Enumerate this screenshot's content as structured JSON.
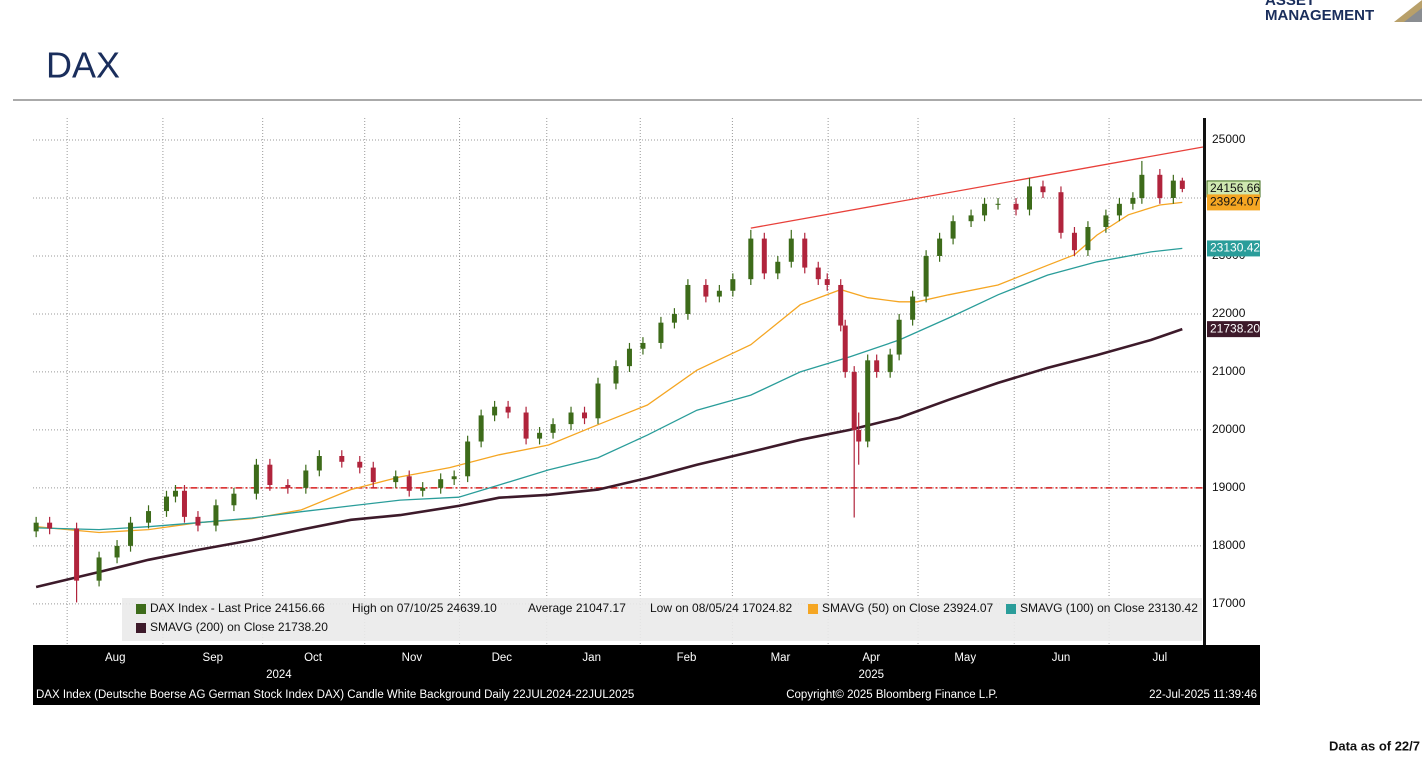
{
  "header": {
    "logo": [
      "ASSET",
      "MANAGEMENT"
    ],
    "title": "DAX"
  },
  "footer": {
    "note": "Data as of 22/7"
  },
  "chart_data": {
    "type": "candlestick",
    "xlim": [
      -0.7,
      259.6
    ],
    "ylim": [
      16290,
      25380
    ],
    "yticks": [
      17000,
      18000,
      19000,
      20000,
      21000,
      22000,
      23000,
      24000,
      25000
    ],
    "xticks": [
      {
        "value": 17.6,
        "label": "Aug"
      },
      {
        "value": 39.3,
        "label": "Sep"
      },
      {
        "value": 61.6,
        "label": "Oct"
      },
      {
        "value": 83.6,
        "label": "Nov"
      },
      {
        "value": 103.6,
        "label": "Dec"
      },
      {
        "value": 123.6,
        "label": "Jan"
      },
      {
        "value": 144.7,
        "label": "Feb"
      },
      {
        "value": 165.6,
        "label": "Mar"
      },
      {
        "value": 185.8,
        "label": "Apr"
      },
      {
        "value": 206.7,
        "label": "May"
      },
      {
        "value": 228,
        "label": "Jun"
      },
      {
        "value": 250,
        "label": "Jul"
      }
    ],
    "xgrid": [
      6.9,
      28.2,
      50.4,
      73.1,
      94.2,
      113.6,
      134.4,
      154.9,
      176.2,
      196.2,
      217.6,
      238.7
    ],
    "year_labels": [
      {
        "value": 54,
        "label": "2024"
      },
      {
        "value": 185.8,
        "label": "2025"
      }
    ],
    "grid": true,
    "series": [
      {
        "name": "DAX Index - Last Price 24156.66",
        "type": "candlestick",
        "color": "#3d6b1a",
        "down_color": "#b0243c",
        "label_fill": "#cfe8b0",
        "x": [
          0,
          3,
          9,
          14,
          18,
          21,
          25,
          29,
          31,
          33,
          36,
          40,
          44,
          49,
          52,
          56,
          60,
          63,
          68,
          72,
          75,
          80,
          83,
          86,
          90,
          93,
          96,
          99,
          102,
          105,
          109,
          112,
          115,
          119,
          122,
          125,
          129,
          132,
          135,
          139,
          142,
          145,
          149,
          152,
          155,
          159,
          162,
          165,
          168,
          171,
          174,
          176,
          179,
          180,
          182,
          183,
          185,
          187,
          190,
          192,
          195,
          198,
          201,
          204,
          208,
          211,
          214,
          218,
          221,
          224,
          228,
          231,
          234,
          238,
          241,
          244,
          246,
          250,
          253,
          255
        ],
        "open": [
          18250,
          18400,
          18300,
          17400,
          17800,
          18000,
          18400,
          18600,
          18850,
          18950,
          18500,
          18350,
          18700,
          18900,
          19400,
          19050,
          19000,
          19300,
          19550,
          19450,
          19350,
          19100,
          19200,
          18950,
          19000,
          19150,
          19200,
          19800,
          20250,
          20400,
          20300,
          19850,
          19950,
          20100,
          20300,
          20200,
          20800,
          21100,
          21400,
          21500,
          21850,
          22000,
          22500,
          22300,
          22400,
          22600,
          23300,
          22700,
          22900,
          23300,
          22800,
          22600,
          22500,
          21800,
          21000,
          20000,
          19800,
          21200,
          21000,
          21300,
          21900,
          22300,
          23000,
          23300,
          23600,
          23700,
          23900,
          23900,
          23800,
          24200,
          24100,
          23400,
          23100,
          23500,
          23700,
          23900,
          24000,
          24400,
          24000,
          24300
        ],
        "high": [
          18500,
          18500,
          18400,
          17900,
          18100,
          18500,
          18700,
          18950,
          19050,
          19050,
          18600,
          18800,
          19000,
          19500,
          19500,
          19150,
          19400,
          19650,
          19650,
          19550,
          19450,
          19300,
          19300,
          19100,
          19250,
          19300,
          19900,
          20350,
          20500,
          20500,
          20400,
          20050,
          20200,
          20400,
          20400,
          20900,
          21200,
          21500,
          21600,
          21950,
          22100,
          22600,
          22600,
          22500,
          22700,
          23450,
          23400,
          23000,
          23450,
          23400,
          22900,
          22700,
          22600,
          21900,
          21100,
          20300,
          21300,
          21300,
          21400,
          22000,
          22400,
          23100,
          23400,
          23700,
          23800,
          24000,
          24000,
          24000,
          24350,
          24300,
          24200,
          23500,
          23600,
          23800,
          24000,
          24100,
          24639.1,
          24500,
          24400,
          24350
        ],
        "low": [
          18150,
          18200,
          17024.82,
          17300,
          17700,
          17900,
          18300,
          18500,
          18750,
          18400,
          18250,
          18250,
          18600,
          18800,
          18950,
          18900,
          18900,
          19200,
          19350,
          19250,
          19000,
          19000,
          18850,
          18850,
          18900,
          19050,
          19100,
          19700,
          20150,
          20200,
          19750,
          19750,
          19850,
          20000,
          20100,
          20100,
          20700,
          21000,
          21300,
          21400,
          21750,
          21900,
          22200,
          22200,
          22300,
          22500,
          22600,
          22600,
          22800,
          22700,
          22500,
          22400,
          21700,
          20900,
          18490,
          19400,
          19700,
          20900,
          20900,
          21200,
          21800,
          22200,
          22900,
          23200,
          23500,
          23600,
          23800,
          23700,
          23700,
          24000,
          23300,
          23000,
          23000,
          23400,
          23600,
          23800,
          23900,
          23900,
          23900,
          24100
        ],
        "close": [
          18400,
          18300,
          17400,
          17800,
          18000,
          18400,
          18600,
          18850,
          18950,
          18500,
          18350,
          18700,
          18900,
          19400,
          19050,
          19000,
          19300,
          19550,
          19450,
          19350,
          19100,
          19200,
          18950,
          19000,
          19150,
          19200,
          19800,
          20250,
          20400,
          20300,
          19850,
          19950,
          20100,
          20300,
          20200,
          20800,
          21100,
          21400,
          21500,
          21850,
          22000,
          22500,
          22300,
          22400,
          22600,
          23300,
          22700,
          22900,
          23300,
          22800,
          22600,
          22500,
          21800,
          21000,
          20000,
          19800,
          21200,
          21000,
          21300,
          21900,
          22300,
          23000,
          23300,
          23600,
          23700,
          23900,
          23900,
          23800,
          24200,
          24100,
          23400,
          23100,
          23500,
          23700,
          23900,
          24000,
          24400,
          24000,
          24300,
          24156.66
        ]
      },
      {
        "name": "SMAVG (50)  on Close 23924.07",
        "type": "line",
        "color": "#f5a623",
        "width": 1.3,
        "label_fill": "#f5a623",
        "label_text": "#111",
        "value_label": "23924.07",
        "x": [
          0,
          14,
          25,
          36,
          48,
          59,
          70,
          81,
          92,
          103,
          114,
          125,
          136,
          147,
          159,
          170,
          179,
          185,
          192,
          196,
          203,
          214,
          225,
          231,
          236,
          243,
          250,
          255
        ],
        "values": [
          18330,
          18230,
          18280,
          18400,
          18470,
          18620,
          18970,
          19190,
          19350,
          19570,
          19740,
          20090,
          20430,
          21030,
          21470,
          22160,
          22420,
          22280,
          22210,
          22210,
          22330,
          22500,
          22840,
          23020,
          23360,
          23710,
          23880,
          23924.07
        ]
      },
      {
        "name": "SMAVG (100)  on Close 23130.42",
        "type": "line",
        "color": "#2a9d9a",
        "width": 1.3,
        "label_fill": "#2a9d9a",
        "label_text": "#fff",
        "value_label": "23130.42",
        "x": [
          0,
          14,
          25,
          36,
          48,
          59,
          70,
          81,
          94,
          103,
          114,
          125,
          136,
          147,
          159,
          170,
          181,
          192,
          203,
          214,
          225,
          236,
          248,
          255
        ],
        "values": [
          18310,
          18280,
          18330,
          18400,
          18480,
          18590,
          18690,
          18790,
          18840,
          19050,
          19310,
          19520,
          19910,
          20340,
          20600,
          21000,
          21260,
          21550,
          21930,
          22330,
          22670,
          22900,
          23070,
          23130.42
        ]
      },
      {
        "name": "SMAVG (200)  on Close 21738.20",
        "type": "line",
        "color": "#3d1a2a",
        "width": 2.6,
        "label_fill": "#3d1a2a",
        "label_text": "#fff",
        "value_label": "21738.20",
        "x": [
          0,
          14,
          25,
          36,
          48,
          59,
          70,
          81,
          94,
          103,
          114,
          125,
          136,
          147,
          159,
          170,
          181,
          192,
          203,
          214,
          225,
          236,
          248,
          255
        ],
        "values": [
          17290,
          17550,
          17760,
          17930,
          18100,
          18280,
          18450,
          18530,
          18690,
          18830,
          18880,
          18970,
          19170,
          19400,
          19620,
          19830,
          20000,
          20210,
          20520,
          20810,
          21070,
          21290,
          21550,
          21738.2
        ]
      }
    ],
    "legend_stats": [
      "High on 07/10/25 24639.10",
      "Average 21047.17",
      "Low on 08/05/24 17024.82"
    ],
    "trendline": {
      "color": "#e8403a",
      "x": [
        159,
        259.6
      ],
      "values": [
        23480,
        24880
      ]
    },
    "hline": {
      "color": "#d81e1e",
      "value": 19000,
      "x_start": 31
    },
    "footer_left": "DAX Index (Deutsche Boerse AG German Stock Index DAX) Candle White Background  Daily 22JUL2024-22JUL2025",
    "footer_center": "Copyright© 2025 Bloomberg Finance L.P.",
    "footer_right": "22-Jul-2025 11:39:46"
  }
}
